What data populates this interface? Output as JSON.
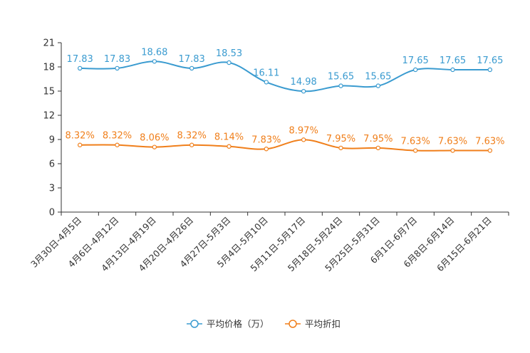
{
  "chart_data": {
    "type": "line",
    "categories": [
      "3月30日-4月5日",
      "4月6日-4月12日",
      "4月13日-4月19日",
      "4月20日-4月26日",
      "4月27日-5月3日",
      "5月4日-5月10日",
      "5月11日-5月17日",
      "5月18日-5月24日",
      "5月25日-5月31日",
      "6月1日-6月7日",
      "6月8日-6月14日",
      "6月15日-6月21日"
    ],
    "ylim": [
      0,
      21
    ],
    "yticks": [
      0,
      3,
      6,
      9,
      12,
      15,
      18,
      21
    ],
    "ytick_labels": [
      "0",
      "3",
      "6",
      "9",
      "12",
      "15",
      "18",
      "21"
    ],
    "grid": false,
    "legend_position": "bottom-center",
    "series": [
      {
        "name": "平均价格（万）",
        "color": "#3a9bd0",
        "values": [
          17.83,
          17.83,
          18.68,
          17.83,
          18.53,
          16.11,
          14.98,
          15.65,
          15.65,
          17.65,
          17.65,
          17.65
        ],
        "labels": [
          "17.83",
          "17.83",
          "18.68",
          "17.83",
          "18.53",
          "16.11",
          "14.98",
          "15.65",
          "15.65",
          "17.65",
          "17.65",
          "17.65"
        ]
      },
      {
        "name": "平均折扣",
        "color": "#f07f1b",
        "values": [
          8.32,
          8.32,
          8.06,
          8.32,
          8.14,
          7.83,
          8.97,
          7.95,
          7.95,
          7.63,
          7.63,
          7.63
        ],
        "labels": [
          "8.32%",
          "8.32%",
          "8.06%",
          "8.32%",
          "8.14%",
          "7.83%",
          "8.97%",
          "7.95%",
          "7.95%",
          "7.63%",
          "7.63%",
          "7.63%"
        ]
      }
    ]
  }
}
